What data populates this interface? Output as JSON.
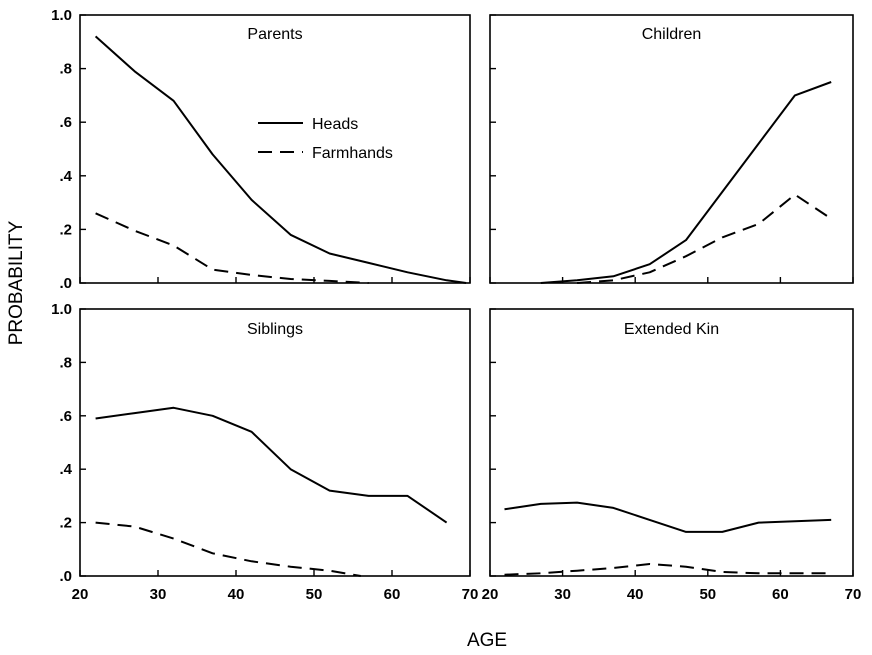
{
  "chart_data": {
    "type": "line",
    "ylabel": "PROBABILITY",
    "xlabel": "AGE",
    "xlim": [
      20,
      70
    ],
    "ylim": [
      0,
      1.0
    ],
    "x_ticks": [
      20,
      30,
      40,
      50,
      60,
      70
    ],
    "x_tick_labels": [
      "20",
      "30",
      "40",
      "50",
      "60",
      "70"
    ],
    "y_ticks": [
      0,
      0.2,
      0.4,
      0.6,
      0.8,
      1.0
    ],
    "y_tick_labels": [
      ".0",
      ".2",
      ".4",
      ".6",
      ".8",
      "1.0"
    ],
    "grid": false,
    "legend": {
      "placement": "inside-top-left-panel",
      "entries": [
        {
          "label": "Heads",
          "style": "solid"
        },
        {
          "label": "Farmhands",
          "style": "dashed"
        }
      ]
    },
    "panels": [
      {
        "title": "Parents",
        "series": [
          {
            "name": "Heads",
            "style": "solid",
            "x": [
              22,
              27,
              32,
              37,
              42,
              47,
              52,
              57,
              62,
              67,
              69.5
            ],
            "y": [
              0.92,
              0.79,
              0.68,
              0.48,
              0.31,
              0.18,
              0.11,
              0.075,
              0.04,
              0.01,
              0.0
            ]
          },
          {
            "name": "Farmhands",
            "style": "dashed",
            "x": [
              22,
              27,
              32,
              37,
              42,
              47,
              52,
              57
            ],
            "y": [
              0.26,
              0.195,
              0.14,
              0.05,
              0.03,
              0.015,
              0.008,
              0.0
            ]
          }
        ]
      },
      {
        "title": "Children",
        "series": [
          {
            "name": "Heads",
            "style": "solid",
            "x": [
              27,
              32,
              37,
              42,
              47,
              52,
              57,
              62,
              67
            ],
            "y": [
              0.0,
              0.01,
              0.025,
              0.07,
              0.16,
              0.34,
              0.52,
              0.7,
              0.75
            ]
          },
          {
            "name": "Farmhands",
            "style": "dashed",
            "x": [
              32,
              37,
              42,
              47,
              52,
              57,
              62,
              67
            ],
            "y": [
              0.0,
              0.01,
              0.04,
              0.1,
              0.17,
              0.22,
              0.33,
              0.24
            ]
          }
        ]
      },
      {
        "title": "Siblings",
        "series": [
          {
            "name": "Heads",
            "style": "solid",
            "x": [
              22,
              27,
              32,
              37,
              42,
              47,
              52,
              57,
              62,
              67
            ],
            "y": [
              0.59,
              0.61,
              0.63,
              0.6,
              0.54,
              0.4,
              0.32,
              0.3,
              0.3,
              0.2
            ]
          },
          {
            "name": "Farmhands",
            "style": "dashed",
            "x": [
              22,
              27,
              32,
              37,
              42,
              47,
              52,
              56
            ],
            "y": [
              0.2,
              0.185,
              0.14,
              0.085,
              0.055,
              0.035,
              0.02,
              0.0
            ]
          }
        ]
      },
      {
        "title": "Extended Kin",
        "series": [
          {
            "name": "Heads",
            "style": "solid",
            "x": [
              22,
              27,
              32,
              37,
              42,
              47,
              52,
              57,
              62,
              67
            ],
            "y": [
              0.25,
              0.27,
              0.275,
              0.255,
              0.21,
              0.165,
              0.165,
              0.2,
              0.205,
              0.21
            ]
          },
          {
            "name": "Farmhands",
            "style": "dashed",
            "x": [
              22,
              27,
              32,
              37,
              42,
              47,
              52,
              57,
              62,
              67
            ],
            "y": [
              0.005,
              0.01,
              0.02,
              0.03,
              0.045,
              0.035,
              0.015,
              0.01,
              0.01,
              0.01
            ]
          }
        ]
      }
    ]
  }
}
